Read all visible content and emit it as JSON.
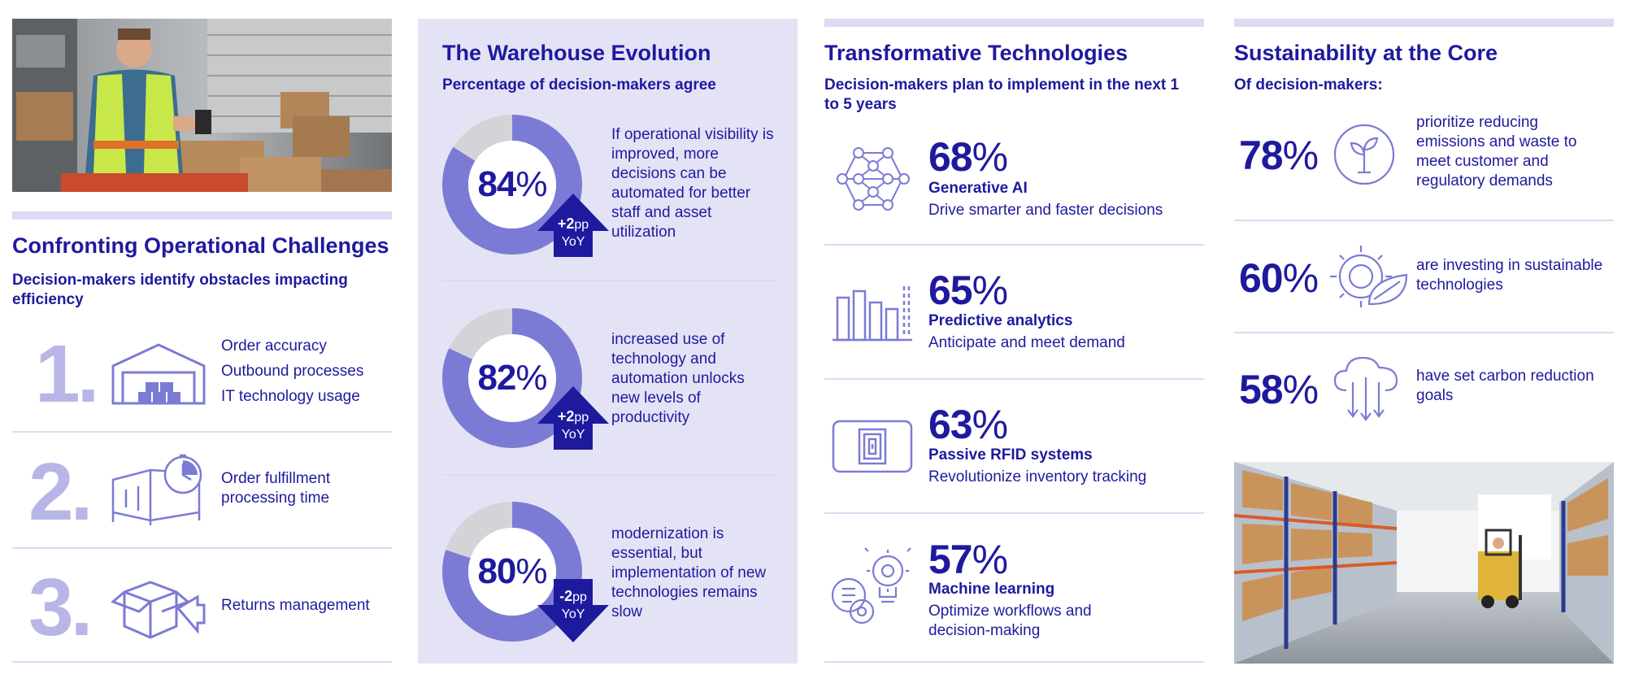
{
  "challenges": {
    "title": "Confronting Operational Challenges",
    "subtitle": "Decision-makers identify obstacles impacting efficiency",
    "items": [
      {
        "rank": "1.",
        "lines": [
          "Order accuracy",
          "Outbound processes",
          "IT technology usage"
        ],
        "icon": "warehouse-icon"
      },
      {
        "rank": "2.",
        "lines": [
          "Order fulfillment",
          "processing time"
        ],
        "icon": "delivery-truck-timer-icon"
      },
      {
        "rank": "3.",
        "lines": [
          "Returns management"
        ],
        "icon": "return-box-icon"
      }
    ]
  },
  "evolution": {
    "title": "The Warehouse Evolution",
    "subtitle": "Percentage of decision-makers agree",
    "items": [
      {
        "value": 84,
        "value_text": "84",
        "pct": "%",
        "change": "+2",
        "unit": "pp",
        "yoy": "YoY",
        "direction": "up",
        "text": "If operational visibility is improved, more decisions can be automated for better staff and asset utilization"
      },
      {
        "value": 82,
        "value_text": "82",
        "pct": "%",
        "change": "+2",
        "unit": "pp",
        "yoy": "YoY",
        "direction": "up",
        "text": "increased use of technology and automation unlocks new levels of productivity"
      },
      {
        "value": 80,
        "value_text": "80",
        "pct": "%",
        "change": "-2",
        "unit": "pp",
        "yoy": "YoY",
        "direction": "down",
        "text": "modernization is essential, but implementation of new technologies remains slow"
      }
    ]
  },
  "technologies": {
    "title": "Transformative Technologies",
    "subtitle": "Decision-makers plan to implement in the next 1 to 5 years",
    "items": [
      {
        "value": "68",
        "pct": "%",
        "name": "Generative AI",
        "desc": "Drive smarter and faster decisions",
        "icon": "neural-network-icon"
      },
      {
        "value": "65",
        "pct": "%",
        "name": "Predictive analytics",
        "desc": "Anticipate and meet demand",
        "icon": "bar-chart-icon"
      },
      {
        "value": "63",
        "pct": "%",
        "name": "Passive RFID systems",
        "desc": "Revolutionize inventory tracking",
        "icon": "rfid-tag-icon"
      },
      {
        "value": "57",
        "pct": "%",
        "name": "Machine learning",
        "desc": "Optimize workflows and decision-making",
        "icon": "machine-learning-icon"
      }
    ]
  },
  "sustainability": {
    "title": "Sustainability at the Core",
    "subtitle": "Of decision-makers:",
    "items": [
      {
        "value": "78",
        "pct": "%",
        "text": "prioritize reducing emissions and waste to meet customer and regulatory demands",
        "icon": "plant-cycle-icon"
      },
      {
        "value": "60",
        "pct": "%",
        "text": "are investing in sustainable technologies",
        "icon": "gear-leaf-icon"
      },
      {
        "value": "58",
        "pct": "%",
        "text": "have set carbon reduction goals",
        "icon": "cloud-download-icon"
      }
    ]
  },
  "colors": {
    "brand": "#1e1a9e",
    "accent": "#7b7bd6",
    "light": "#dcdbf3",
    "panel": "#e4e3f6",
    "donut_rest": "#d4d4d8"
  }
}
